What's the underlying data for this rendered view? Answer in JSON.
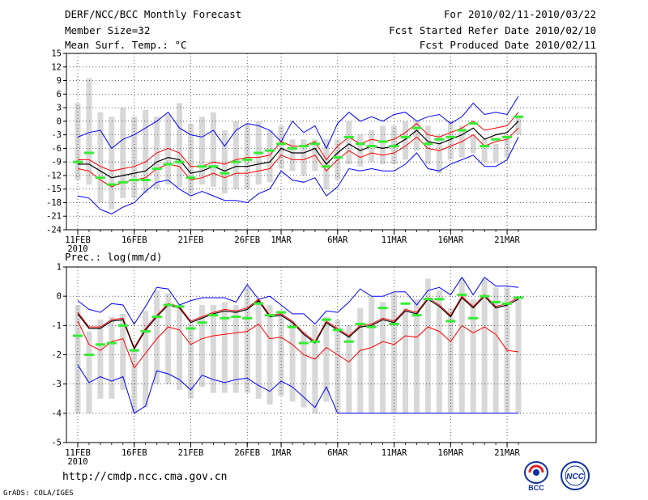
{
  "header": {
    "title": "DERF/NCC/BCC Monthly Forecast",
    "member_size": "Member Size=32",
    "variable": "Mean Surf. Temp.: °C",
    "for_range": "For 2010/02/11-2010/03/22",
    "fcst_started": "Fcst Started Refer Date 2010/02/10",
    "fcst_produced": "Fcst Produced Date 2010/02/11"
  },
  "footer": {
    "url": "http://cmdp.ncc.cma.gov.cn",
    "grads": "GrADS: COLA/IGES"
  },
  "logos": {
    "bcc": "BCC",
    "ncc": "NCC"
  },
  "colors": {
    "ensemble_mean": "#000000",
    "spread_line": "#ff0000",
    "envelope": "#0000ff",
    "box": "#d8d8d8",
    "observed": "#33ee33",
    "grid": "#000000"
  },
  "chart_data": [
    {
      "type": "box",
      "title": "Mean Surf. Temp.: °C",
      "x_tick_labels": [
        "11FEB",
        "16FEB",
        "21FEB",
        "26FEB",
        "1MAR",
        "6MAR",
        "11MAR",
        "16MAR",
        "21MAR"
      ],
      "x_tick_days": [
        0,
        5,
        10,
        15,
        18,
        23,
        28,
        33,
        38
      ],
      "x_year_label": "2010",
      "ylim": [
        -24,
        15
      ],
      "yticks": [
        -24,
        -21,
        -18,
        -15,
        -12,
        -9,
        -6,
        -3,
        0,
        3,
        6,
        9,
        12,
        15
      ],
      "series": {
        "mean": [
          -9.5,
          -9.5,
          -11,
          -12.5,
          -12,
          -11.5,
          -11,
          -9,
          -8,
          -8.5,
          -11.5,
          -11,
          -10,
          -11,
          -10,
          -10,
          -9.5,
          -9,
          -6,
          -7,
          -7,
          -6,
          -9.5,
          -7,
          -5,
          -6.5,
          -5.5,
          -6,
          -5.5,
          -4,
          -2,
          -4.5,
          -5,
          -4,
          -3,
          -1.5,
          -4,
          -3,
          -2.5,
          0
        ],
        "upper": [
          -8.5,
          -8.5,
          -10,
          -11,
          -10.5,
          -10,
          -9,
          -7,
          -6,
          -7,
          -10,
          -10,
          -9,
          -9.5,
          -8.5,
          -8,
          -8,
          -7.5,
          -4.5,
          -5.5,
          -5.5,
          -4.5,
          -8.5,
          -5.5,
          -3.5,
          -5,
          -4,
          -4.5,
          -4,
          -2.5,
          -0.5,
          -3,
          -3.5,
          -2.5,
          -1.5,
          0,
          -2,
          -1.5,
          -1,
          2
        ],
        "lower": [
          -10.5,
          -11,
          -13,
          -14.5,
          -13.5,
          -13,
          -12.5,
          -10.5,
          -9.5,
          -10,
          -13,
          -12.5,
          -11.5,
          -12.5,
          -11.5,
          -11.5,
          -11,
          -10.5,
          -7.5,
          -8.5,
          -8.5,
          -7.5,
          -11,
          -8.5,
          -6.5,
          -8,
          -7,
          -7.5,
          -7,
          -5.5,
          -3.5,
          -6,
          -6.5,
          -5.5,
          -4.5,
          -3,
          -5.5,
          -4.5,
          -4,
          -1.5
        ],
        "max": [
          -3.5,
          -2.5,
          -2,
          -6,
          -4,
          -3,
          -1.5,
          0,
          2,
          -1.5,
          -3,
          -3.5,
          -2,
          -5.5,
          -2,
          -0.5,
          -1,
          -2,
          -4.5,
          0,
          -2.5,
          -1,
          -6,
          -0.5,
          2,
          0,
          1,
          0,
          1.5,
          2,
          0,
          1,
          1.5,
          -0.5,
          1,
          4,
          1.5,
          2,
          1.5,
          5.5
        ],
        "min": [
          -16.5,
          -17,
          -19.5,
          -20.5,
          -19,
          -18,
          -15.5,
          -13.5,
          -13,
          -15,
          -16.5,
          -15.5,
          -16.5,
          -17.5,
          -17.5,
          -18,
          -16,
          -15,
          -11,
          -13,
          -13.5,
          -12.5,
          -16.5,
          -14.5,
          -10.5,
          -11,
          -10.5,
          -11,
          -11,
          -9.5,
          -7,
          -10.5,
          -11,
          -9.5,
          -8.5,
          -7.5,
          -10,
          -10,
          -8.5,
          -3.5
        ],
        "box_top": [
          4,
          9.5,
          2,
          1,
          3,
          1,
          2.5,
          1,
          1.5,
          4,
          -0.5,
          1,
          2,
          -2,
          0,
          -0.5,
          0,
          -2,
          -1,
          -4,
          -4,
          -4,
          -4,
          -4,
          0,
          -3,
          -2,
          -1,
          -1,
          0,
          0,
          -1,
          -3,
          0,
          -1,
          -3,
          -4,
          -5,
          -3,
          1
        ],
        "box_bottom": [
          -13,
          -14,
          -18,
          -19.5,
          -17,
          -17,
          -16,
          -15,
          -14,
          -14.5,
          -16,
          -14,
          -14.5,
          -16,
          -15,
          -15,
          -14,
          -13.5,
          -10.5,
          -11,
          -12,
          -11,
          -15,
          -13,
          -9.5,
          -10,
          -9,
          -9.5,
          -9.5,
          -8.5,
          -6.5,
          -9.5,
          -11.5,
          -8.5,
          -8,
          -7,
          -9,
          -9,
          -8,
          -3
        ],
        "observed": [
          -9,
          -7,
          -12.5,
          -14,
          -13.5,
          -13,
          -13,
          -10.5,
          -9.5,
          -9,
          -12.5,
          -10,
          -10,
          -11.5,
          -9,
          -8.5,
          -7,
          -6.5,
          -5,
          -6,
          -5.5,
          -5,
          -10,
          -8,
          -3.5,
          -5,
          -5.5,
          -4.5,
          -5.5,
          -3.5,
          -1.5,
          -5,
          -4,
          -3.5,
          -2,
          -0.5,
          -5.5,
          -4,
          -3.5,
          1
        ]
      }
    },
    {
      "type": "box",
      "title": "Prec.: log(mm/d)",
      "x_tick_labels": [
        "11FEB",
        "16FEB",
        "21FEB",
        "26FEB",
        "1MAR",
        "6MAR",
        "11MAR",
        "16MAR",
        "21MAR"
      ],
      "x_tick_days": [
        0,
        5,
        10,
        15,
        18,
        23,
        28,
        33,
        38
      ],
      "x_year_label": "2010",
      "ylim": [
        -5,
        1
      ],
      "yticks": [
        -5,
        -4,
        -3,
        -2,
        -1,
        0,
        1
      ],
      "series": {
        "mean": [
          -0.6,
          -1.1,
          -1.1,
          -0.85,
          -0.8,
          -1.8,
          -1.15,
          -0.7,
          -0.3,
          -0.4,
          -0.9,
          -0.75,
          -0.6,
          -0.5,
          -0.55,
          -0.45,
          -0.15,
          -0.7,
          -0.65,
          -0.9,
          -1.3,
          -1.6,
          -0.9,
          -1.15,
          -1.4,
          -1.05,
          -1,
          -0.8,
          -0.9,
          -0.5,
          -0.6,
          -0.1,
          -0.35,
          -0.7,
          -0.05,
          -0.4,
          0,
          -0.4,
          -0.3,
          -0.1
        ],
        "upper": [
          -0.55,
          -1.05,
          -1.05,
          -0.8,
          -0.75,
          -1.75,
          -1.1,
          -0.65,
          -0.25,
          -0.35,
          -0.85,
          -0.7,
          -0.55,
          -0.45,
          -0.5,
          -0.4,
          -0.1,
          -0.65,
          -0.6,
          -0.85,
          -1.25,
          -1.55,
          -0.85,
          -1.1,
          -1.35,
          -1,
          -0.95,
          -0.75,
          -0.85,
          -0.45,
          -0.55,
          -0.05,
          -0.3,
          -0.65,
          0,
          -0.35,
          0.05,
          -0.35,
          -0.25,
          -0.05
        ],
        "lower": [
          -0.85,
          -1.65,
          -1.85,
          -1.55,
          -1.45,
          -2.45,
          -1.95,
          -1.45,
          -1.05,
          -1.15,
          -1.65,
          -1.45,
          -1.35,
          -1.3,
          -1.25,
          -1.2,
          -0.95,
          -1.45,
          -1.4,
          -1.65,
          -2,
          -2.15,
          -1.75,
          -2,
          -2.25,
          -1.85,
          -1.75,
          -1.55,
          -1.65,
          -1.35,
          -1.4,
          -1.05,
          -1.2,
          -1.55,
          -1,
          -1.25,
          -1.05,
          -1.3,
          -1.85,
          -1.9
        ],
        "max": [
          -0.15,
          -0.45,
          -0.55,
          -0.25,
          -0.3,
          -0.95,
          -0.35,
          0.3,
          0.25,
          -0.3,
          -0.15,
          -0.05,
          -0.05,
          -0.05,
          -0.2,
          0.4,
          -0.1,
          0,
          -0.3,
          -0.6,
          -0.6,
          -0.95,
          -0.5,
          -0.55,
          -0.2,
          0.25,
          0,
          0,
          0.15,
          0.15,
          -0.3,
          0.2,
          0.3,
          0.05,
          0.65,
          0.05,
          0.65,
          0.35,
          0.35,
          0.3
        ],
        "min": [
          -2.35,
          -2.95,
          -2.75,
          -2.9,
          -2.75,
          -4,
          -3.75,
          -2.55,
          -2.65,
          -2.85,
          -3.2,
          -2.7,
          -2.85,
          -2.95,
          -2.85,
          -2.8,
          -3.05,
          -3.25,
          -2.9,
          -3.1,
          -3.45,
          -3.8,
          -3.1,
          -4,
          -4,
          -4,
          -4,
          -4,
          -4,
          -4,
          -4,
          -4,
          -4,
          -4,
          -4,
          -4,
          -4,
          -4,
          -4,
          -4
        ],
        "box_top": [
          -0.3,
          -1.2,
          -0.8,
          -0.7,
          -0.6,
          -1.8,
          -0.5,
          0.2,
          0.1,
          -0.3,
          -0.9,
          -0.3,
          -0.3,
          -0.2,
          -0.3,
          0.3,
          -0.1,
          -0.3,
          -0.5,
          -0.9,
          -1.2,
          -1,
          -0.7,
          -0.8,
          -1,
          -0.4,
          0,
          -0.2,
          0.1,
          -0.4,
          -0.1,
          0.6,
          0.2,
          -0.4,
          0.6,
          -0.1,
          0.6,
          0.3,
          0.3,
          -0.1
        ],
        "box_bottom": [
          -4,
          -4,
          -3.5,
          -3.5,
          -3.2,
          -4,
          -3.8,
          -3,
          -3,
          -3.2,
          -3.5,
          -3.1,
          -3.3,
          -3.3,
          -3.3,
          -3.3,
          -3.5,
          -3.7,
          -3.4,
          -3.6,
          -3.8,
          -4,
          -3.6,
          -4,
          -4,
          -4,
          -4,
          -4,
          -4,
          -4,
          -4,
          -4,
          -4,
          -4,
          -4,
          -4,
          -4,
          -4,
          -4,
          -4
        ],
        "observed": [
          -1.35,
          -2,
          -1.65,
          -1.6,
          -1,
          -1.85,
          -1.2,
          -0.7,
          -0.3,
          -0.35,
          -1.1,
          -0.9,
          -0.65,
          -0.75,
          -0.7,
          -0.75,
          -0.25,
          -0.65,
          -0.55,
          -1.05,
          -1.6,
          -1.55,
          -0.8,
          -1.15,
          -1.55,
          -0.95,
          -1.05,
          -0.4,
          -0.95,
          -0.25,
          -0.65,
          -0.1,
          -0.1,
          -0.85,
          0.05,
          -0.75,
          0,
          -0.2,
          -0.25,
          -0.05
        ]
      }
    }
  ]
}
